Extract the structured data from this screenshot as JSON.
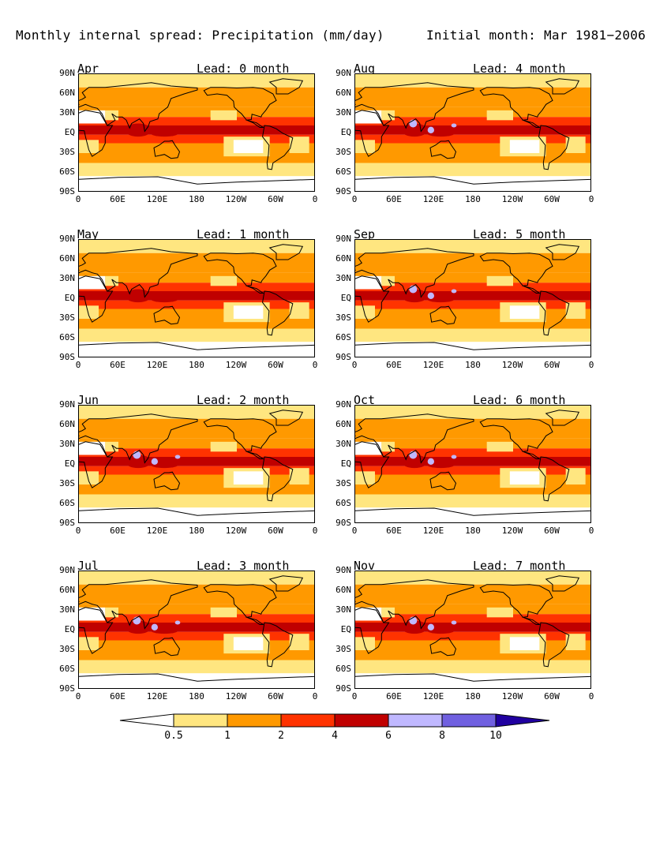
{
  "figure": {
    "title_left": "Monthly internal spread: Precipitation (mm/day)",
    "title_right": "Initial month: Mar 1981−2006"
  },
  "axes": {
    "y_ticks": [
      "90N",
      "60N",
      "30N",
      "EQ",
      "30S",
      "60S",
      "90S"
    ],
    "x_ticks_default": [
      "0",
      "60E",
      "120E",
      "180",
      "120W",
      "60W",
      "0"
    ],
    "x_ticks_jul": [
      "0",
      "60E",
      "120E",
      "180",
      "120W",
      "60W",
      "0"
    ],
    "x_ticks_nov": [
      "0",
      "60E",
      "120E",
      "180",
      "120W",
      "60W",
      "0"
    ]
  },
  "panels": [
    {
      "id": "apr",
      "month": "Apr",
      "lead": "Lead: 0 month",
      "peak": 0
    },
    {
      "id": "aug",
      "month": "Aug",
      "lead": "Lead: 4 month",
      "peak": 1
    },
    {
      "id": "may",
      "month": "May",
      "lead": "Lead: 1 month",
      "peak": 0
    },
    {
      "id": "sep",
      "month": "Sep",
      "lead": "Lead: 5 month",
      "peak": 1
    },
    {
      "id": "jun",
      "month": "Jun",
      "lead": "Lead: 2 month",
      "peak": 1
    },
    {
      "id": "oct",
      "month": "Oct",
      "lead": "Lead: 6 month",
      "peak": 1
    },
    {
      "id": "jul",
      "month": "Jul",
      "lead": "Lead: 3 month",
      "peak": 1
    },
    {
      "id": "nov",
      "month": "Nov",
      "lead": "Lead: 7 month",
      "peak": 1
    }
  ],
  "colorbar": {
    "labels": [
      "0.5",
      "1",
      "2",
      "4",
      "6",
      "8",
      "10"
    ],
    "colors": [
      "#ffffff",
      "#ffe680",
      "#ff9900",
      "#ff3300",
      "#c00000",
      "#c0b8ff",
      "#7060e0",
      "#2000a0"
    ]
  }
}
